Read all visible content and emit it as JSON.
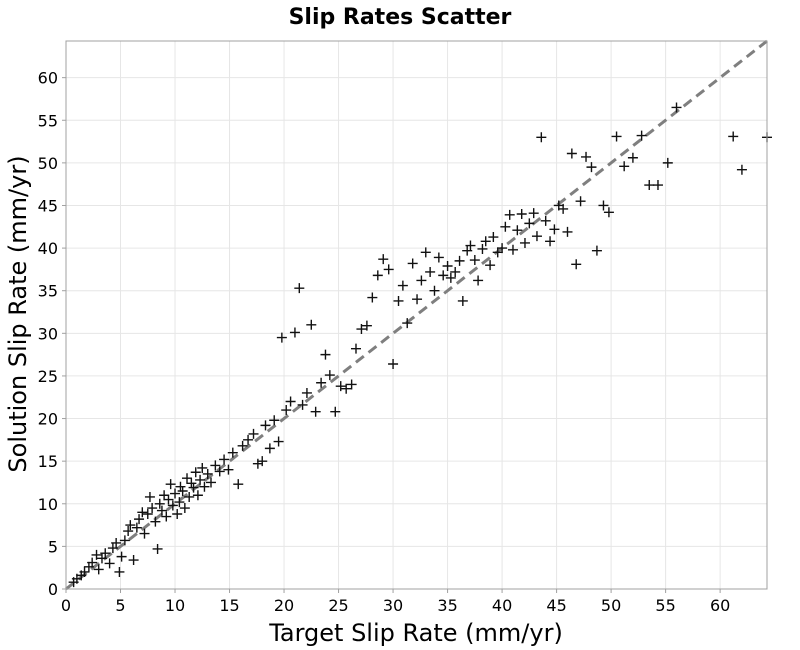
{
  "chart_data": {
    "type": "scatter",
    "title": "Slip Rates Scatter",
    "xlabel": "Target Slip Rate (mm/yr)",
    "ylabel": "Solution Slip Rate (mm/yr)",
    "xlim": [
      0,
      64.3
    ],
    "ylim": [
      0,
      64.3
    ],
    "x_ticks": [
      0,
      5,
      10,
      15,
      20,
      25,
      30,
      35,
      40,
      45,
      50,
      55,
      60
    ],
    "y_ticks": [
      0,
      5,
      10,
      15,
      20,
      25,
      30,
      35,
      40,
      45,
      50,
      55,
      60
    ],
    "grid": true,
    "marker": "plus",
    "reference_line": {
      "style": "dashed",
      "color": "#7f7f7f",
      "from": [
        0,
        0
      ],
      "to": [
        64.3,
        64.3
      ]
    },
    "series": [
      {
        "points": [
          [
            0.7,
            0.8
          ],
          [
            1.0,
            1.2
          ],
          [
            1.4,
            1.6
          ],
          [
            1.7,
            2.0
          ],
          [
            2.1,
            2.6
          ],
          [
            2.4,
            3.1
          ],
          [
            2.8,
            4.0
          ],
          [
            3.0,
            2.3
          ],
          [
            3.3,
            3.6
          ],
          [
            3.6,
            4.2
          ],
          [
            4.0,
            3.0
          ],
          [
            4.3,
            4.8
          ],
          [
            4.6,
            5.4
          ],
          [
            4.9,
            2.0
          ],
          [
            5.1,
            3.8
          ],
          [
            5.4,
            5.7
          ],
          [
            5.7,
            6.8
          ],
          [
            5.9,
            7.5
          ],
          [
            6.2,
            3.4
          ],
          [
            6.5,
            7.2
          ],
          [
            6.7,
            8.2
          ],
          [
            7.0,
            9.0
          ],
          [
            7.2,
            6.5
          ],
          [
            7.5,
            8.8
          ],
          [
            7.7,
            10.8
          ],
          [
            7.9,
            9.5
          ],
          [
            8.2,
            7.9
          ],
          [
            8.4,
            4.7
          ],
          [
            8.6,
            10.0
          ],
          [
            8.8,
            9.2
          ],
          [
            9.0,
            11.0
          ],
          [
            9.2,
            8.5
          ],
          [
            9.4,
            10.5
          ],
          [
            9.6,
            12.3
          ],
          [
            9.8,
            9.8
          ],
          [
            10.0,
            11.2
          ],
          [
            10.2,
            8.8
          ],
          [
            10.4,
            10.2
          ],
          [
            10.5,
            12.0
          ],
          [
            10.7,
            11.5
          ],
          [
            10.9,
            9.5
          ],
          [
            11.1,
            13.0
          ],
          [
            11.3,
            10.8
          ],
          [
            11.5,
            12.4
          ],
          [
            11.7,
            11.9
          ],
          [
            11.9,
            13.7
          ],
          [
            12.1,
            11.0
          ],
          [
            12.3,
            12.8
          ],
          [
            12.5,
            14.2
          ],
          [
            12.7,
            12.0
          ],
          [
            13.0,
            13.5
          ],
          [
            13.3,
            12.5
          ],
          [
            13.7,
            14.5
          ],
          [
            14.1,
            13.8
          ],
          [
            14.5,
            15.2
          ],
          [
            14.9,
            14.0
          ],
          [
            15.3,
            16.0
          ],
          [
            15.8,
            12.3
          ],
          [
            16.2,
            16.8
          ],
          [
            16.7,
            17.5
          ],
          [
            17.2,
            18.2
          ],
          [
            17.6,
            14.7
          ],
          [
            18.0,
            15.0
          ],
          [
            18.3,
            19.2
          ],
          [
            18.7,
            16.5
          ],
          [
            19.1,
            19.8
          ],
          [
            19.5,
            17.3
          ],
          [
            19.8,
            29.5
          ],
          [
            20.2,
            21.0
          ],
          [
            20.6,
            22.0
          ],
          [
            21.0,
            30.1
          ],
          [
            21.4,
            35.3
          ],
          [
            21.7,
            21.6
          ],
          [
            22.1,
            23.0
          ],
          [
            22.5,
            31.0
          ],
          [
            22.9,
            20.8
          ],
          [
            23.4,
            24.2
          ],
          [
            23.8,
            27.5
          ],
          [
            24.2,
            25.1
          ],
          [
            24.7,
            20.8
          ],
          [
            25.2,
            23.8
          ],
          [
            25.7,
            23.5
          ],
          [
            26.2,
            24.0
          ],
          [
            26.6,
            28.2
          ],
          [
            27.1,
            30.5
          ],
          [
            27.6,
            30.9
          ],
          [
            28.1,
            34.2
          ],
          [
            28.6,
            36.8
          ],
          [
            29.1,
            38.7
          ],
          [
            29.6,
            37.5
          ],
          [
            30.0,
            26.4
          ],
          [
            30.5,
            33.8
          ],
          [
            30.9,
            35.6
          ],
          [
            31.3,
            31.2
          ],
          [
            31.8,
            38.2
          ],
          [
            32.2,
            34.0
          ],
          [
            32.6,
            36.2
          ],
          [
            33.0,
            39.5
          ],
          [
            33.4,
            37.2
          ],
          [
            33.8,
            35.0
          ],
          [
            34.2,
            38.9
          ],
          [
            34.6,
            36.8
          ],
          [
            35.0,
            37.9
          ],
          [
            35.3,
            36.5
          ],
          [
            35.7,
            37.2
          ],
          [
            36.1,
            38.5
          ],
          [
            36.4,
            33.8
          ],
          [
            36.8,
            39.7
          ],
          [
            37.1,
            40.3
          ],
          [
            37.5,
            38.6
          ],
          [
            37.8,
            36.2
          ],
          [
            38.2,
            39.9
          ],
          [
            38.5,
            40.8
          ],
          [
            38.9,
            38.0
          ],
          [
            39.2,
            41.3
          ],
          [
            39.6,
            39.5
          ],
          [
            40.0,
            40.0
          ],
          [
            40.3,
            42.5
          ],
          [
            40.7,
            43.9
          ],
          [
            41.0,
            39.8
          ],
          [
            41.4,
            42.1
          ],
          [
            41.8,
            44.0
          ],
          [
            42.1,
            40.6
          ],
          [
            42.5,
            42.9
          ],
          [
            42.9,
            44.1
          ],
          [
            43.2,
            41.4
          ],
          [
            43.6,
            53.0
          ],
          [
            44.0,
            43.2
          ],
          [
            44.4,
            40.8
          ],
          [
            44.8,
            42.2
          ],
          [
            45.2,
            45.0
          ],
          [
            45.6,
            44.6
          ],
          [
            46.0,
            41.9
          ],
          [
            46.4,
            51.1
          ],
          [
            46.8,
            38.1
          ],
          [
            47.2,
            45.5
          ],
          [
            47.7,
            50.7
          ],
          [
            48.2,
            49.5
          ],
          [
            48.7,
            39.7
          ],
          [
            49.3,
            45.0
          ],
          [
            49.8,
            44.2
          ],
          [
            50.5,
            53.1
          ],
          [
            51.2,
            49.6
          ],
          [
            52.0,
            50.6
          ],
          [
            52.8,
            53.2
          ],
          [
            53.5,
            47.4
          ],
          [
            54.3,
            47.4
          ],
          [
            55.2,
            50.0
          ],
          [
            56.0,
            56.5
          ],
          [
            61.2,
            53.1
          ],
          [
            62.0,
            49.2
          ],
          [
            64.3,
            53.0
          ]
        ]
      }
    ]
  }
}
